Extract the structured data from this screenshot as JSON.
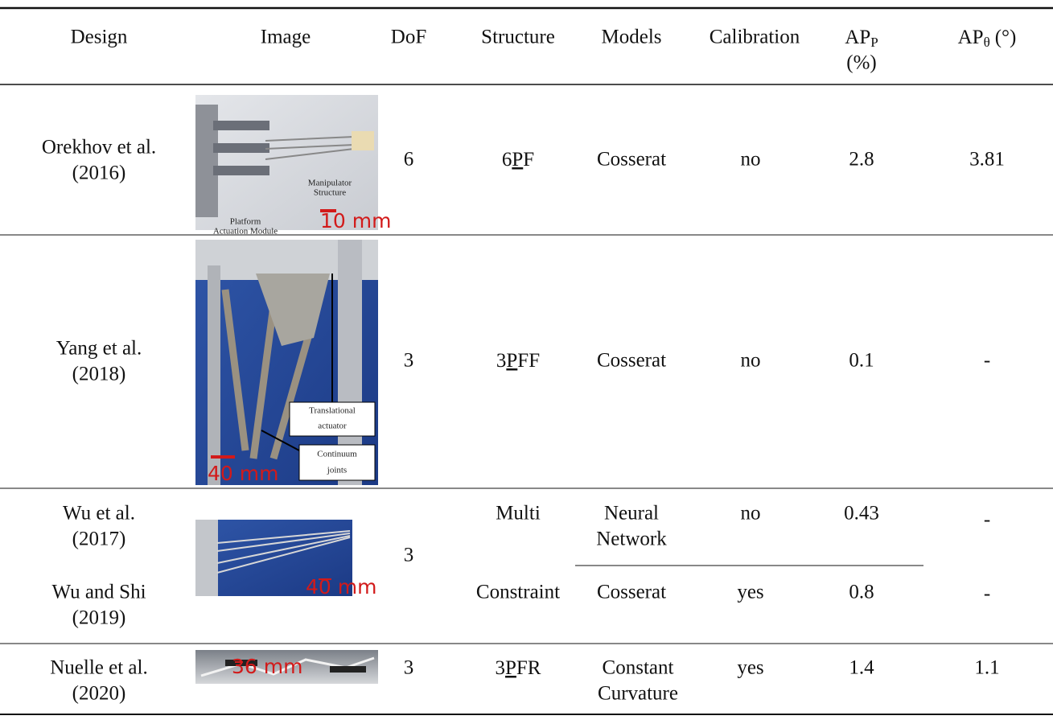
{
  "header": {
    "columns": [
      "Design",
      "Image",
      "DoF",
      "Structure",
      "Models",
      "Calibration",
      {
        "symbol": "AP",
        "subscript": "P",
        "unit": "(%)"
      },
      {
        "symbol": "AP",
        "subscript": "θ",
        "unit": "(°)"
      }
    ]
  },
  "rows": [
    {
      "design": [
        "Orekhov et al.",
        "(2016)"
      ],
      "image_labels": [
        "Platform",
        "Actuation Module",
        "Manipulator",
        "Structure",
        "10 mm"
      ],
      "dof": "6",
      "structure": {
        "prefix": "6",
        "underlined": "P",
        "suffix": "F"
      },
      "models": [
        "Cosserat"
      ],
      "calibration": "no",
      "ap_p": "2.8",
      "ap_theta": "3.81"
    },
    {
      "design": [
        "Yang et al.",
        "(2018)"
      ],
      "image_labels": [
        "Translational",
        "actuator",
        "Continuum",
        "joints",
        "40 mm"
      ],
      "dof": "3",
      "structure": {
        "prefix": "3",
        "underlined": "P",
        "suffix": "FF"
      },
      "models": [
        "Cosserat"
      ],
      "calibration": "no",
      "ap_p": "0.1",
      "ap_theta": "-"
    },
    {
      "design": [
        "Wu et al.",
        "(2017)"
      ],
      "image_labels": [
        "40 mm"
      ],
      "dof": "3",
      "structure": [
        "Multi",
        "Constraint"
      ],
      "models": [
        "Neural",
        "Network"
      ],
      "calibration": "no",
      "ap_p": "0.43",
      "ap_theta": "-"
    },
    {
      "design": [
        "Wu and Shi",
        "(2019)"
      ],
      "models": [
        "Cosserat"
      ],
      "calibration": "yes",
      "ap_p": "0.8",
      "ap_theta": "-"
    },
    {
      "design": [
        "Nuelle et al.",
        "(2020)"
      ],
      "image_labels": [
        "36 mm"
      ],
      "dof": "3",
      "structure": {
        "prefix": "3",
        "underlined": "P",
        "suffix": "FR"
      },
      "models": [
        "Constant",
        "Curvature"
      ],
      "calibration": "yes",
      "ap_p": "1.4",
      "ap_theta": "1.1"
    }
  ]
}
